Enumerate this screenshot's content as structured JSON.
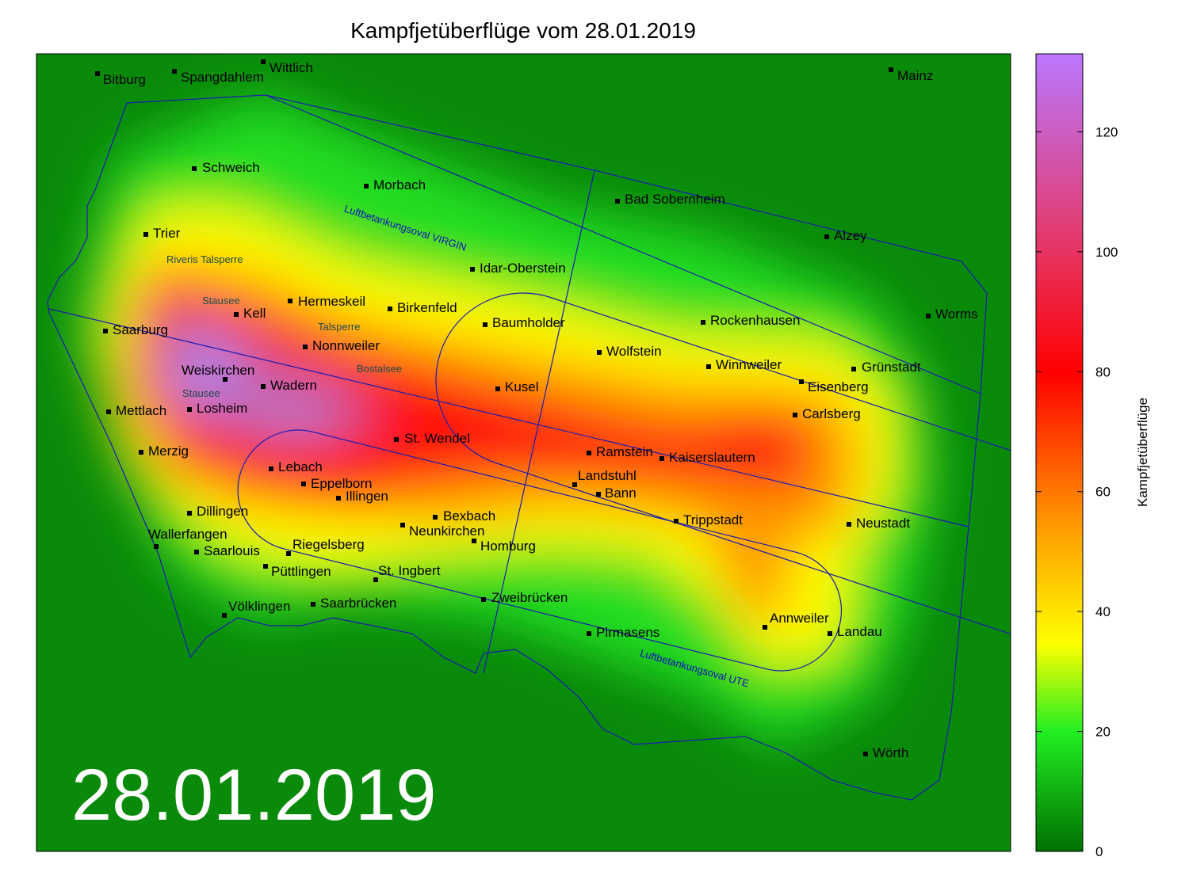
{
  "title": "Kampfjetüberflüge vom 28.01.2019",
  "date": "28.01.2019",
  "colorbar": {
    "label": "Kampfjetüberflüge",
    "lim": [
      0,
      133
    ],
    "ticks": [
      0,
      20,
      40,
      60,
      80,
      100,
      120
    ]
  },
  "ovals": [
    "Luftbetankungsoval VIRGIN",
    "Luftbetankungsoval UTE"
  ],
  "lakes": [
    "Riveris Talsperre",
    "Stausee",
    "Talsperre",
    "Bostalsee",
    "Stausee"
  ],
  "places": [
    "Bitburg",
    "Spangdahlem",
    "Wittlich",
    "Mainz",
    "Schweich",
    "Morbach",
    "Bad Sobernheim",
    "Trier",
    "Alzey",
    "Idar-Oberstein",
    "Hermeskeil",
    "Kell",
    "Birkenfeld",
    "Baumholder",
    "Rockenhausen",
    "Worms",
    "Saarburg",
    "Nonnweiler",
    "Wolfstein",
    "Winnweiler",
    "Grünstadt",
    "Weiskirchen",
    "Eisenberg",
    "Wadern",
    "Kusel",
    "Mettlach",
    "Losheim",
    "Carlsberg",
    "St. Wendel",
    "Merzig",
    "Ramstein",
    "Kaiserslautern",
    "Lebach",
    "Landstuhl",
    "Eppelborn",
    "Bann",
    "Illingen",
    "Dillingen",
    "Bexbach",
    "Trippstadt",
    "Neustadt",
    "Neunkirchen",
    "Wallerfangen",
    "Homburg",
    "Saarlouis",
    "Riegelsberg",
    "Püttlingen",
    "St. Ingbert",
    "Zweibrücken",
    "Saarbrücken",
    "Völklingen",
    "Annweiler",
    "Pirmasens",
    "Landau",
    "Wörth"
  ]
}
